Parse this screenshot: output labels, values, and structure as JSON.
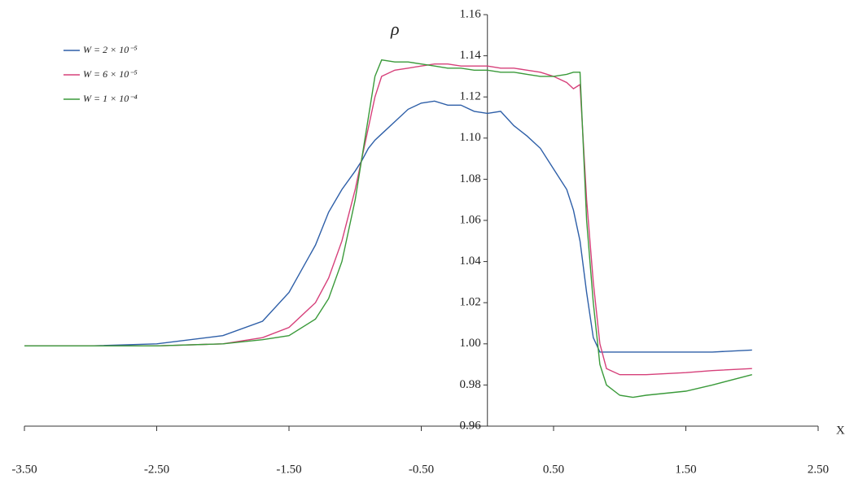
{
  "chart_data": {
    "type": "line",
    "x_label": "X",
    "y_label": "ρ",
    "x": [
      -3.5,
      -3,
      -2.5,
      -2,
      -1.7,
      -1.5,
      -1.3,
      -1.2,
      -1.1,
      -1,
      -0.95,
      -0.9,
      -0.85,
      -0.8,
      -0.7,
      -0.6,
      -0.5,
      -0.4,
      -0.3,
      -0.2,
      -0.1,
      0,
      0.1,
      0.2,
      0.3,
      0.4,
      0.5,
      0.6,
      0.65,
      0.7,
      0.75,
      0.8,
      0.85,
      0.9,
      1,
      1.1,
      1.2,
      1.5,
      1.7,
      2
    ],
    "series": [
      {
        "name": "W = 2 × 10⁻⁵",
        "color": "#2e5fa8",
        "values": [
          0.999,
          0.999,
          1.0,
          1.004,
          1.011,
          1.025,
          1.048,
          1.064,
          1.075,
          1.084,
          1.089,
          1.095,
          1.099,
          1.102,
          1.108,
          1.114,
          1.117,
          1.118,
          1.116,
          1.116,
          1.113,
          1.112,
          1.113,
          1.106,
          1.101,
          1.095,
          1.085,
          1.075,
          1.065,
          1.05,
          1.025,
          1.003,
          0.996,
          0.996,
          0.996,
          0.996,
          0.996,
          0.996,
          0.996,
          0.997
        ]
      },
      {
        "name": "W = 6 × 10⁻⁵",
        "color": "#d6407a",
        "values": [
          0.999,
          0.999,
          0.999,
          1.0,
          1.003,
          1.008,
          1.02,
          1.032,
          1.05,
          1.075,
          1.09,
          1.105,
          1.12,
          1.13,
          1.133,
          1.134,
          1.135,
          1.136,
          1.136,
          1.135,
          1.135,
          1.135,
          1.134,
          1.134,
          1.133,
          1.132,
          1.13,
          1.127,
          1.124,
          1.126,
          1.07,
          1.03,
          1.0,
          0.988,
          0.985,
          0.985,
          0.985,
          0.986,
          0.987,
          0.988
        ]
      },
      {
        "name": "W = 1 × 10⁻⁴",
        "color": "#3a9a3a",
        "values": [
          0.999,
          0.999,
          0.999,
          1.0,
          1.002,
          1.004,
          1.012,
          1.022,
          1.04,
          1.07,
          1.09,
          1.11,
          1.13,
          1.138,
          1.137,
          1.137,
          1.136,
          1.135,
          1.134,
          1.134,
          1.133,
          1.133,
          1.132,
          1.132,
          1.131,
          1.13,
          1.13,
          1.131,
          1.132,
          1.132,
          1.06,
          1.02,
          0.99,
          0.98,
          0.975,
          0.974,
          0.975,
          0.977,
          0.98,
          0.985
        ]
      }
    ],
    "xlim": [
      -3.5,
      2.5
    ],
    "xticks": [
      {
        "value": -3.5,
        "label": "-3.50"
      },
      {
        "value": -2.5,
        "label": "-2.50"
      },
      {
        "value": -1.5,
        "label": "-1.50"
      },
      {
        "value": -0.5,
        "label": "-0.50"
      },
      {
        "value": 0.5,
        "label": "0.50"
      },
      {
        "value": 1.5,
        "label": "1.50"
      },
      {
        "value": 2.5,
        "label": "2.50"
      }
    ],
    "ylim": [
      0.96,
      1.16
    ],
    "yticks": [
      0.96,
      0.98,
      {
        "value": 1.0,
        "label": "1.00"
      },
      1.02,
      1.04,
      1.06,
      1.08,
      {
        "value": 1.1,
        "label": "1.10"
      },
      1.12,
      1.14,
      1.16
    ],
    "legend": "upper-left"
  }
}
